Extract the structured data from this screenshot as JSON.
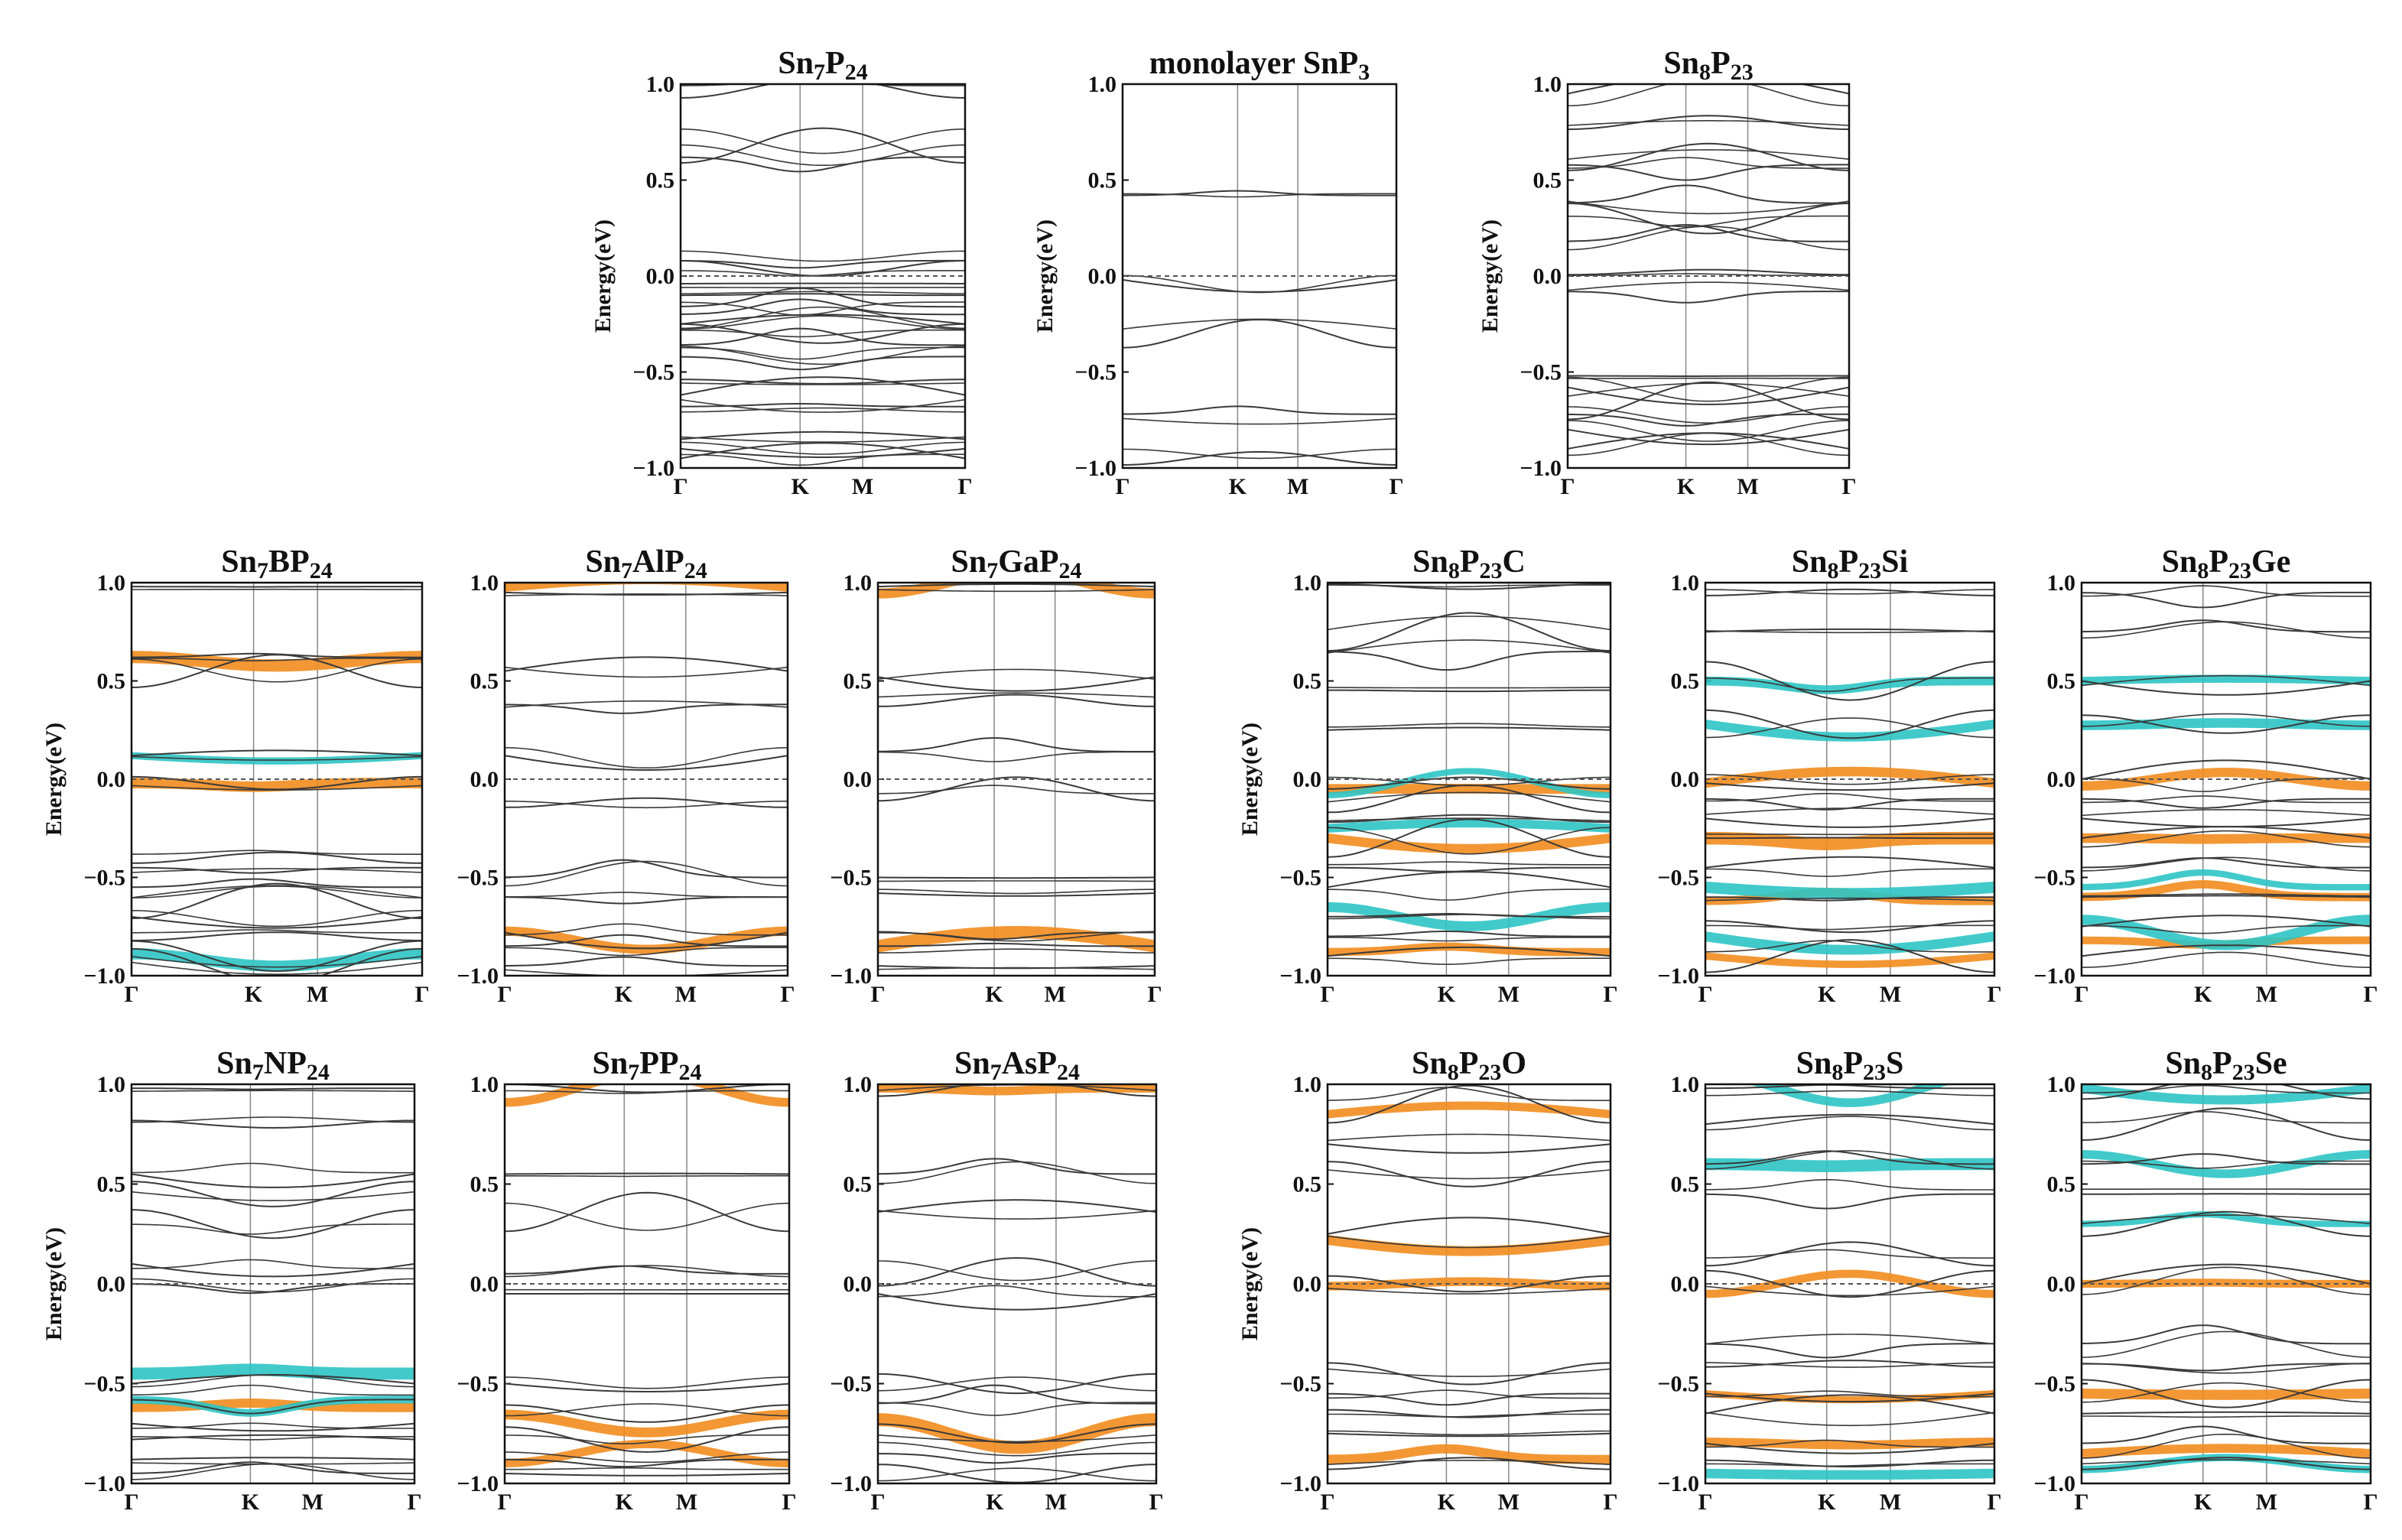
{
  "figure": {
    "y_axis_label": "Energy(eV)",
    "y_range": [
      -1.0,
      1.0
    ],
    "y_ticks": [
      "1.0",
      "0.5",
      "0.0",
      "−0.5",
      "−1.0"
    ],
    "k_labels": [
      "Γ",
      "K",
      "M",
      "Γ"
    ],
    "colors": {
      "band": "#3a3a3a",
      "fermi": "#555555",
      "orange": "#f28c1e",
      "cyan": "#2ec4c4"
    }
  },
  "chart_data": [
    {
      "id": "sn7p24",
      "type": "line",
      "title": "Sn7P24",
      "title_main": "Sn",
      "title_parts": [
        [
          "Sn",
          ""
        ],
        [
          "7",
          "s"
        ],
        [
          "P",
          ""
        ],
        [
          "24",
          "s"
        ]
      ],
      "xlabel": "",
      "ylabel": "Energy(eV)",
      "ylim": [
        -1,
        1
      ],
      "bands": [
        0.98,
        0.68,
        0.62,
        0.08,
        0.04,
        -0.04,
        -0.1,
        -0.16,
        -0.2,
        -0.25,
        -0.3,
        -0.36,
        -0.42,
        -0.55,
        -0.62,
        -0.68,
        -0.85,
        -0.9,
        -0.95
      ],
      "orange": [],
      "cyan": []
    },
    {
      "id": "snp3",
      "type": "line",
      "title": "monolayer SnP3",
      "title_parts": [
        [
          "monolayer SnP",
          ""
        ],
        [
          "3",
          "s"
        ]
      ],
      "xlabel": "",
      "ylabel": "Energy(eV)",
      "ylim": [
        -1,
        1
      ],
      "bands": [
        0.42,
        -0.02,
        -0.3,
        -0.72,
        -0.95
      ],
      "orange": [],
      "cyan": []
    },
    {
      "id": "sn8p23",
      "type": "line",
      "title": "Sn8P23",
      "title_parts": [
        [
          "Sn",
          ""
        ],
        [
          "8",
          "s"
        ],
        [
          "P",
          ""
        ],
        [
          "23",
          "s"
        ]
      ],
      "xlabel": "",
      "ylabel": "Energy(eV)",
      "ylim": [
        -1,
        1
      ],
      "bands": [
        0.95,
        0.8,
        0.62,
        0.58,
        0.38,
        0.3,
        0.18,
        0.02,
        -0.08,
        -0.52,
        -0.58,
        -0.65,
        -0.72,
        -0.8,
        -0.9
      ],
      "orange": [],
      "cyan": []
    },
    {
      "id": "sn7bp24",
      "type": "line",
      "title": "Sn7BP24",
      "title_parts": [
        [
          "Sn",
          ""
        ],
        [
          "7",
          "s"
        ],
        [
          "BP",
          ""
        ],
        [
          "24",
          "s"
        ]
      ],
      "xlabel": "",
      "ylabel": "Energy(eV)",
      "ylim": [
        -1,
        1
      ],
      "bands": [
        0.98,
        0.62,
        0.55,
        0.12,
        -0.02,
        -0.4,
        -0.45,
        -0.55,
        -0.62,
        -0.7,
        -0.8,
        -0.9,
        -0.95
      ],
      "orange": [
        -0.02,
        0.6
      ],
      "cyan": [
        0.12,
        -0.92
      ]
    },
    {
      "id": "sn7alp24",
      "type": "line",
      "title": "Sn7AlP24",
      "title_parts": [
        [
          "Sn",
          ""
        ],
        [
          "7",
          "s"
        ],
        [
          "AlP",
          ""
        ],
        [
          "24",
          "s"
        ]
      ],
      "xlabel": "",
      "ylabel": "Energy(eV)",
      "ylim": [
        -1,
        1
      ],
      "bands": [
        0.95,
        0.55,
        0.38,
        0.12,
        -0.12,
        -0.5,
        -0.6,
        -0.78,
        -0.85,
        -0.95
      ],
      "orange": [
        0.98,
        -0.82
      ],
      "cyan": []
    },
    {
      "id": "sn7gap24",
      "type": "line",
      "title": "Sn7GaP24",
      "title_parts": [
        [
          "Sn",
          ""
        ],
        [
          "7",
          "s"
        ],
        [
          "GaP",
          ""
        ],
        [
          "24",
          "s"
        ]
      ],
      "xlabel": "",
      "ylabel": "Energy(eV)",
      "ylim": [
        -1,
        1
      ],
      "bands": [
        0.98,
        0.52,
        0.4,
        0.14,
        -0.05,
        -0.5,
        -0.58,
        -0.78,
        -0.85,
        -0.95
      ],
      "orange": [
        1.0,
        -0.85
      ],
      "cyan": []
    },
    {
      "id": "sn8p23c",
      "type": "line",
      "title": "Sn8P23C",
      "title_parts": [
        [
          "Sn",
          ""
        ],
        [
          "8",
          "s"
        ],
        [
          "P",
          ""
        ],
        [
          "23",
          "s"
        ],
        [
          "C",
          ""
        ]
      ],
      "xlabel": "",
      "ylabel": "Energy(eV)",
      "ylim": [
        -1,
        1
      ],
      "bands": [
        0.98,
        0.75,
        0.65,
        0.45,
        0.25,
        -0.02,
        -0.1,
        -0.2,
        -0.3,
        -0.45,
        -0.55,
        -0.7,
        -0.8,
        -0.9
      ],
      "orange": [
        -0.05,
        -0.3,
        -0.88
      ],
      "cyan": [
        -0.02,
        -0.25,
        -0.7
      ]
    },
    {
      "id": "sn8p23si",
      "type": "line",
      "title": "Sn8P23Si",
      "title_parts": [
        [
          "Sn",
          ""
        ],
        [
          "8",
          "s"
        ],
        [
          "P",
          ""
        ],
        [
          "23",
          "s"
        ],
        [
          "Si",
          ""
        ]
      ],
      "xlabel": "",
      "ylabel": "Energy(eV)",
      "ylim": [
        -1,
        1
      ],
      "bands": [
        0.95,
        0.75,
        0.5,
        0.28,
        -0.02,
        -0.1,
        -0.2,
        -0.3,
        -0.45,
        -0.6,
        -0.75,
        -0.9
      ],
      "orange": [
        -0.02,
        -0.3,
        -0.62,
        -0.9
      ],
      "cyan": [
        0.28,
        0.5,
        -0.55,
        -0.8
      ]
    },
    {
      "id": "sn8p23ge",
      "type": "line",
      "title": "Sn8P23Ge",
      "title_parts": [
        [
          "Sn",
          ""
        ],
        [
          "8",
          "s"
        ],
        [
          "P",
          ""
        ],
        [
          "23",
          "s"
        ],
        [
          "Ge",
          ""
        ]
      ],
      "xlabel": "",
      "ylabel": "Energy(eV)",
      "ylim": [
        -1,
        1
      ],
      "bands": [
        0.95,
        0.75,
        0.5,
        0.28,
        0.0,
        -0.1,
        -0.2,
        -0.3,
        -0.45,
        -0.6,
        -0.75,
        -0.9
      ],
      "orange": [
        0.0,
        -0.3,
        -0.6,
        -0.82
      ],
      "cyan": [
        0.28,
        0.5,
        -0.55,
        -0.78
      ]
    },
    {
      "id": "sn7np24",
      "type": "line",
      "title": "Sn7NP24",
      "title_parts": [
        [
          "Sn",
          ""
        ],
        [
          "7",
          "s"
        ],
        [
          "NP",
          ""
        ],
        [
          "24",
          "s"
        ]
      ],
      "xlabel": "",
      "ylabel": "Energy(eV)",
      "ylim": [
        -1,
        1
      ],
      "bands": [
        0.98,
        0.8,
        0.55,
        0.45,
        0.3,
        0.1,
        0.0,
        -0.5,
        -0.58,
        -0.7,
        -0.78,
        -0.88,
        -0.95
      ],
      "orange": [
        -0.62
      ],
      "cyan": [
        -0.45,
        -0.58
      ]
    },
    {
      "id": "sn7pp24",
      "type": "line",
      "title": "Sn7PP24",
      "title_parts": [
        [
          "Sn",
          ""
        ],
        [
          "7",
          "s"
        ],
        [
          "PP",
          ""
        ],
        [
          "24",
          "s"
        ]
      ],
      "xlabel": "",
      "ylabel": "Energy(eV)",
      "ylim": [
        -1,
        1
      ],
      "bands": [
        0.98,
        0.55,
        0.36,
        0.05,
        -0.05,
        -0.5,
        -0.65,
        -0.78,
        -0.88,
        -0.95
      ],
      "orange": [
        0.98,
        -0.7,
        -0.85
      ],
      "cyan": []
    },
    {
      "id": "sn7asp24",
      "type": "line",
      "title": "Sn7AsP24",
      "title_parts": [
        [
          "Sn",
          ""
        ],
        [
          "7",
          "s"
        ],
        [
          "AsP",
          ""
        ],
        [
          "24",
          "s"
        ]
      ],
      "xlabel": "",
      "ylabel": "Energy(eV)",
      "ylim": [
        -1,
        1
      ],
      "bands": [
        0.98,
        0.55,
        0.36,
        0.06,
        -0.05,
        -0.5,
        -0.6,
        -0.75,
        -0.85,
        -0.95
      ],
      "orange": [
        0.98,
        -0.75
      ],
      "cyan": []
    },
    {
      "id": "sn8p23o",
      "type": "line",
      "title": "Sn8P23O",
      "title_parts": [
        [
          "Sn",
          ""
        ],
        [
          "8",
          "s"
        ],
        [
          "P",
          ""
        ],
        [
          "23",
          "s"
        ],
        [
          "O",
          ""
        ]
      ],
      "xlabel": "",
      "ylabel": "Energy(eV)",
      "ylim": [
        -1,
        1
      ],
      "bands": [
        0.9,
        0.7,
        0.55,
        0.25,
        0.0,
        -0.45,
        -0.55,
        -0.65,
        -0.75,
        -0.9
      ],
      "orange": [
        0.85,
        0.22,
        0.0,
        -0.88
      ],
      "cyan": []
    },
    {
      "id": "sn8p23s",
      "type": "line",
      "title": "Sn8P23S",
      "title_parts": [
        [
          "Sn",
          ""
        ],
        [
          "8",
          "s"
        ],
        [
          "P",
          ""
        ],
        [
          "23",
          "s"
        ],
        [
          "S",
          ""
        ]
      ],
      "xlabel": "",
      "ylabel": "Energy(eV)",
      "ylim": [
        -1,
        1
      ],
      "bands": [
        0.98,
        0.8,
        0.6,
        0.45,
        0.15,
        0.0,
        -0.3,
        -0.4,
        -0.55,
        -0.65,
        -0.8,
        -0.9
      ],
      "orange": [
        0.0,
        -0.55,
        -0.8
      ],
      "cyan": [
        0.98,
        0.6,
        -0.95
      ]
    },
    {
      "id": "sn8p23se",
      "type": "line",
      "title": "Sn8P23Se",
      "title_parts": [
        [
          "Sn",
          ""
        ],
        [
          "8",
          "s"
        ],
        [
          "P",
          ""
        ],
        [
          "23",
          "s"
        ],
        [
          "Se",
          ""
        ]
      ],
      "xlabel": "",
      "ylabel": "Energy(eV)",
      "ylim": [
        -1,
        1
      ],
      "bands": [
        0.98,
        0.8,
        0.6,
        0.45,
        0.3,
        0.0,
        -0.3,
        -0.4,
        -0.55,
        -0.65,
        -0.8,
        -0.9
      ],
      "orange": [
        0.0,
        -0.55,
        -0.85
      ],
      "cyan": [
        0.98,
        0.3,
        0.6,
        -0.9
      ]
    }
  ]
}
